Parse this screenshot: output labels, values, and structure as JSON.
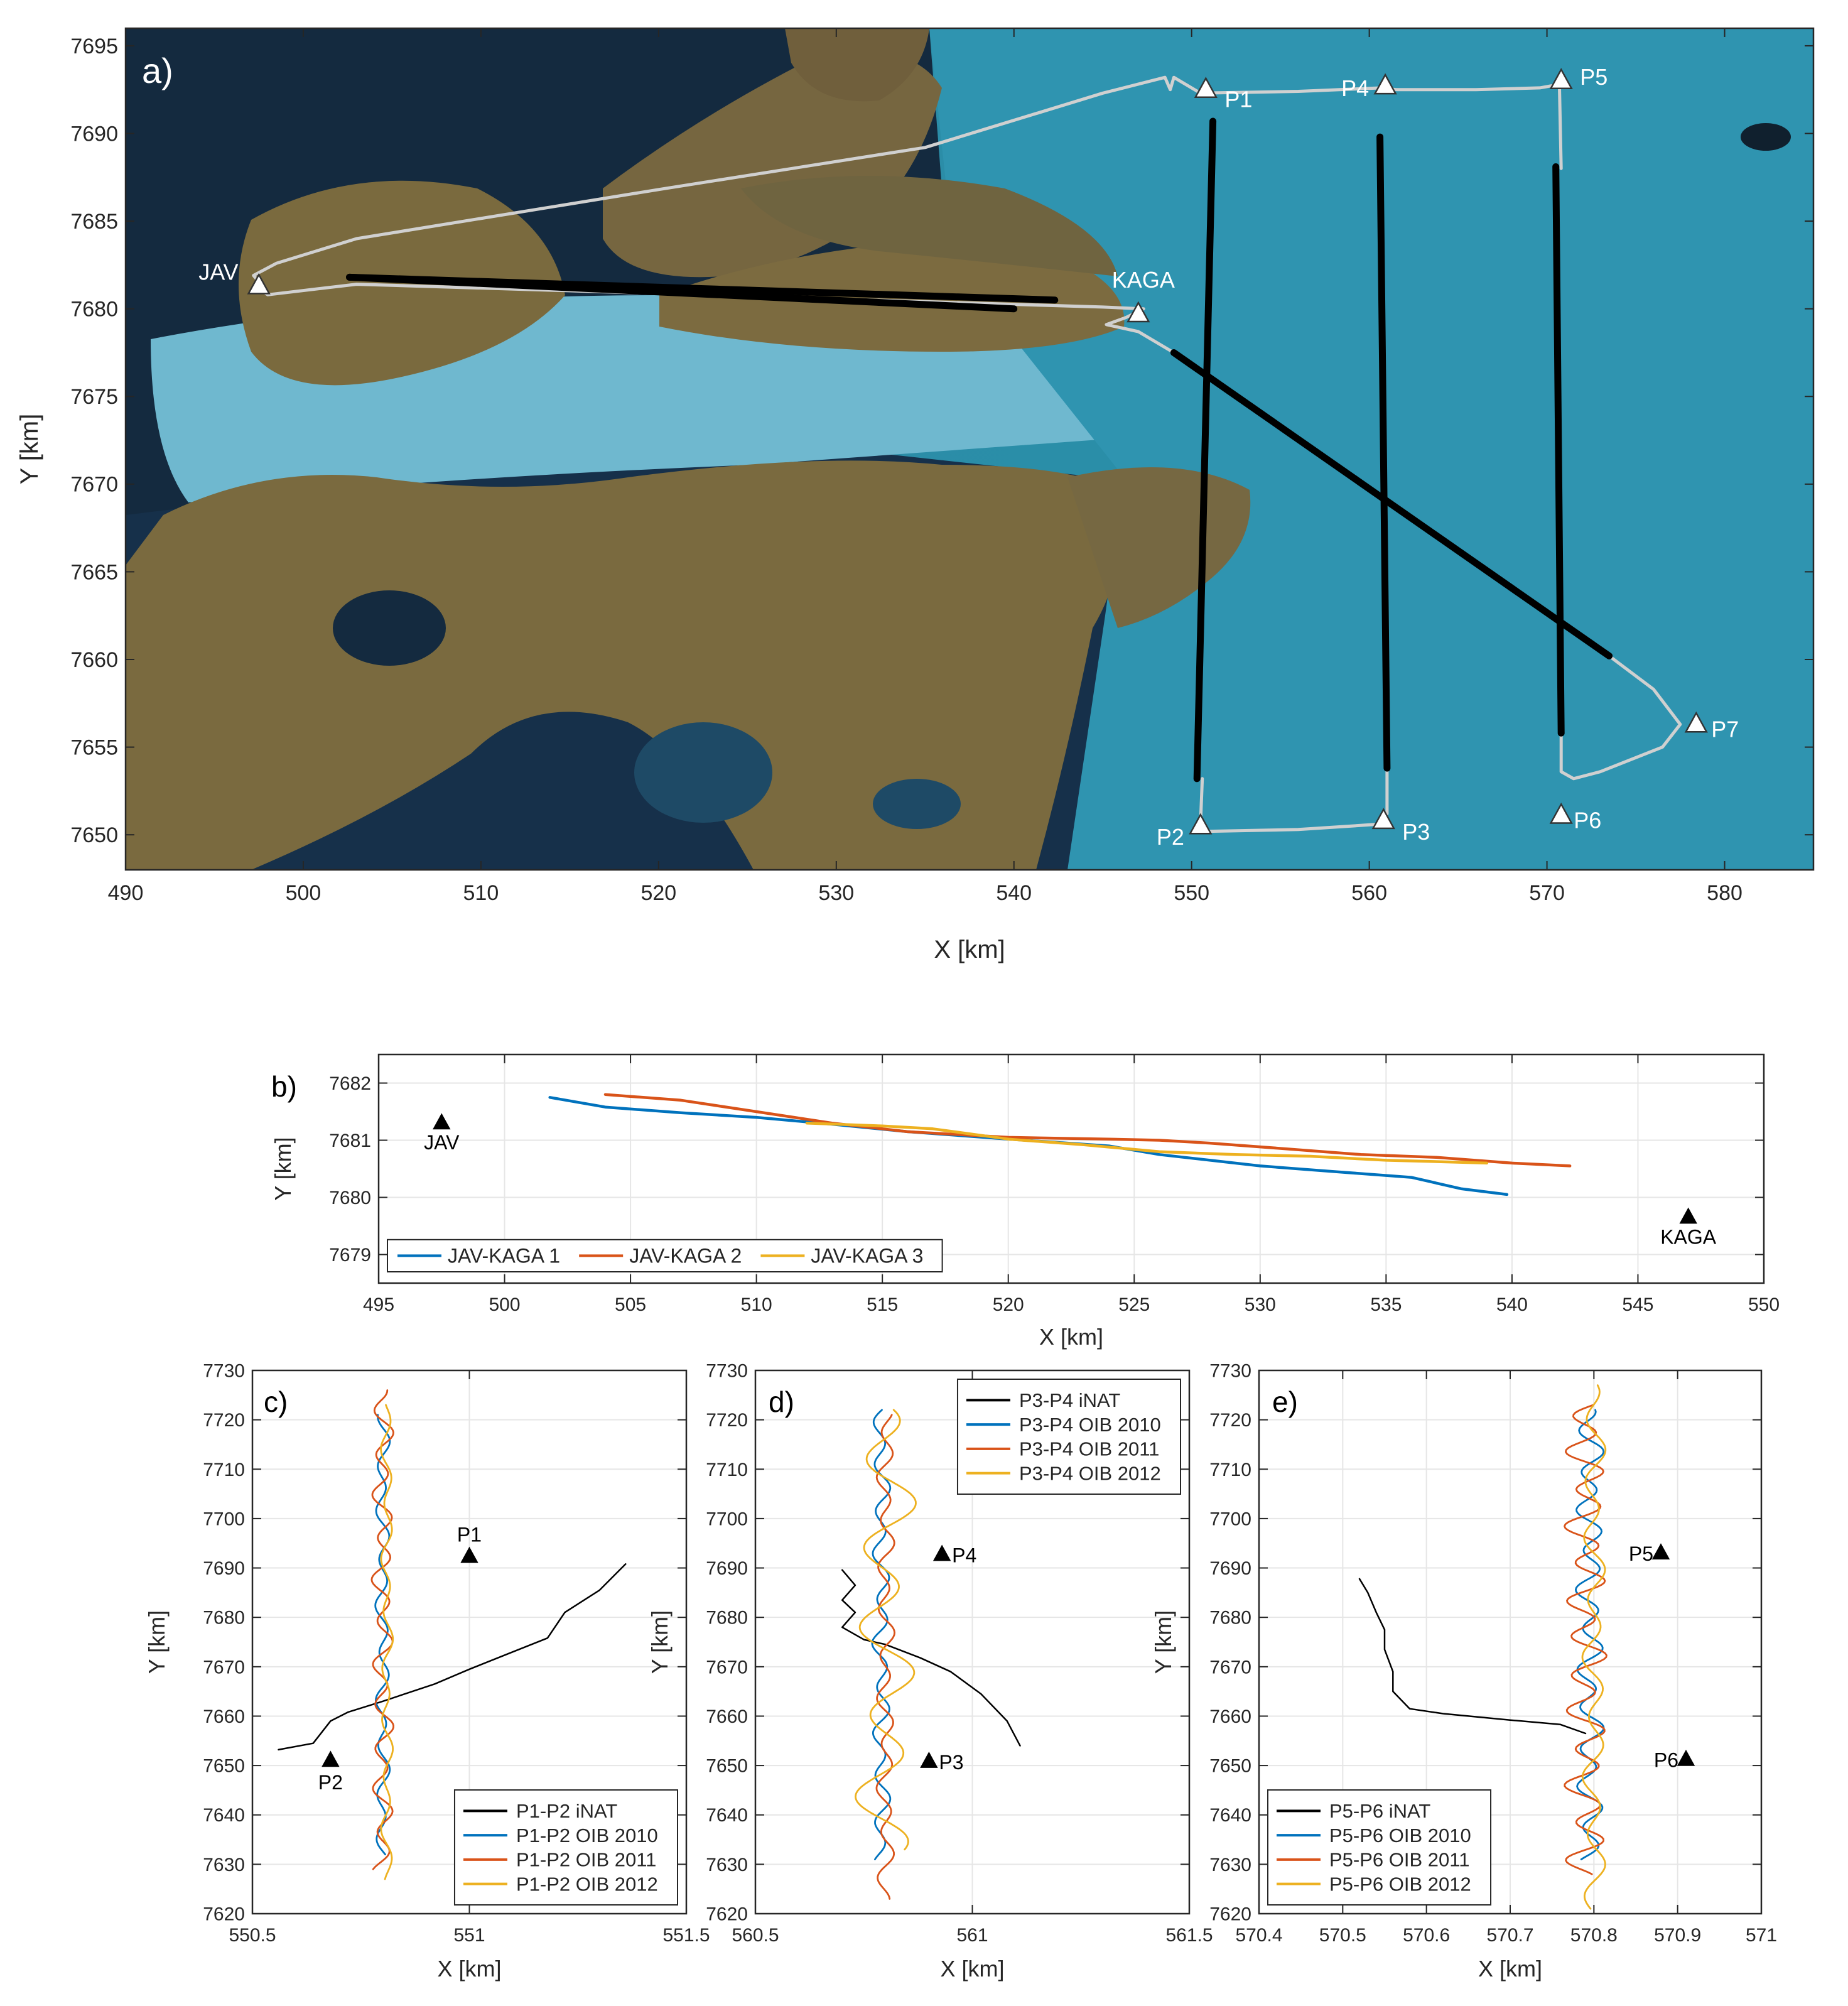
{
  "figure": {
    "panels": [
      {
        "letter": "a)"
      },
      {
        "letter": "b)"
      },
      {
        "letter": "c)"
      },
      {
        "letter": "d)"
      },
      {
        "letter": "e)"
      }
    ]
  },
  "chart_data": [
    {
      "id": "a",
      "type": "line",
      "panel_label": "a)",
      "background": "satellite image",
      "xlabel": "X [km]",
      "ylabel": "Y [km]",
      "xlim": [
        490,
        585
      ],
      "ylim": [
        7648,
        7696
      ],
      "xticks": [
        490,
        500,
        510,
        520,
        530,
        540,
        550,
        560,
        570,
        580
      ],
      "yticks": [
        7650,
        7655,
        7660,
        7665,
        7670,
        7675,
        7680,
        7685,
        7690,
        7695
      ],
      "grid": false,
      "stations": [
        {
          "name": "JAV",
          "x": 497.5,
          "y": 7681.3
        },
        {
          "name": "KAGA",
          "x": 547.0,
          "y": 7679.7
        },
        {
          "name": "P1",
          "x": 550.8,
          "y": 7692.5
        },
        {
          "name": "P2",
          "x": 550.5,
          "y": 7650.5
        },
        {
          "name": "P3",
          "x": 560.8,
          "y": 7650.8
        },
        {
          "name": "P4",
          "x": 560.9,
          "y": 7692.7
        },
        {
          "name": "P5",
          "x": 570.8,
          "y": 7693.0
        },
        {
          "name": "P6",
          "x": 570.8,
          "y": 7651.1
        },
        {
          "name": "P7",
          "x": 578.4,
          "y": 7656.3
        }
      ],
      "flight_path": {
        "color": "#d0d0d0",
        "x": [
          497.8,
          497.2,
          498.5,
          503,
          520,
          535,
          545,
          548.5,
          548.8,
          549,
          550.5,
          556,
          560.7,
          561.5,
          566,
          569.6,
          570.7,
          570.8
        ],
        "y": [
          7681.2,
          7681.9,
          7682.6,
          7684.0,
          7686.8,
          7689.2,
          7692.3,
          7693.2,
          7692.5,
          7693.2,
          7692.3,
          7692.4,
          7692.6,
          7692.5,
          7692.5,
          7692.6,
          7692.8,
          7688.0
        ]
      },
      "flight_path_2": {
        "color": "#d0d0d0",
        "x": [
          497.3,
          498.0,
          503,
          545,
          547.3,
          546.3,
          545.2,
          547.0,
          549.0
        ],
        "y": [
          7681.3,
          7680.8,
          7681.4,
          7680.1,
          7680.0,
          7679.5,
          7679.1,
          7678.7,
          7677.5
        ]
      },
      "return_path": {
        "color": "#d0d0d0",
        "x": [
          550.6,
          550.5,
          551.0,
          556,
          560.5,
          561.0,
          561.0
        ],
        "y": [
          7653.2,
          7650.6,
          7650.2,
          7650.3,
          7650.6,
          7651.2,
          7653.8
        ]
      },
      "east_loop": {
        "color": "#d0d0d0",
        "x": [
          573.5,
          576,
          577.5,
          576.5,
          573,
          571.5,
          570.8,
          570.8
        ],
        "y": [
          7660.2,
          7658.3,
          7656.3,
          7655.0,
          7653.6,
          7653.2,
          7653.6,
          7656.0
        ]
      },
      "segments": [
        {
          "name": "JAV-KAGA",
          "color": "#000000",
          "x": [
            502.6,
            542.3
          ],
          "y": [
            7681.8,
            7680.5
          ]
        },
        {
          "name": "JAV-KAGA",
          "color": "#000000",
          "x": [
            502.6,
            540.0
          ],
          "y": [
            7681.8,
            7680.0
          ]
        },
        {
          "name": "P1-P2",
          "color": "#000000",
          "x": [
            551.2,
            550.3
          ],
          "y": [
            7690.7,
            7653.2
          ]
        },
        {
          "name": "P4-P3",
          "color": "#000000",
          "x": [
            560.6,
            561.0
          ],
          "y": [
            7689.8,
            7653.8
          ]
        },
        {
          "name": "P5-P6",
          "color": "#000000",
          "x": [
            570.5,
            570.8
          ],
          "y": [
            7688.1,
            7655.8
          ]
        },
        {
          "name": "KAGA-diagonal",
          "color": "#000000",
          "x": [
            549.0,
            573.5
          ],
          "y": [
            7677.5,
            7660.2
          ]
        }
      ]
    },
    {
      "id": "b",
      "type": "line",
      "panel_label": "b)",
      "xlabel": "X [km]",
      "ylabel": "Y [km]",
      "xlim": [
        495,
        550
      ],
      "ylim": [
        7678.5,
        7682.5
      ],
      "xticks": [
        495,
        500,
        505,
        510,
        515,
        520,
        525,
        530,
        535,
        540,
        545,
        550
      ],
      "yticks": [
        7679,
        7680,
        7681,
        7682
      ],
      "grid": true,
      "legend": "bottom-left",
      "markers": [
        {
          "name": "JAV",
          "x": 497.5,
          "y": 7681.3
        },
        {
          "name": "KAGA",
          "x": 547.0,
          "y": 7679.65
        }
      ],
      "series": [
        {
          "name": "JAV-KAGA 1",
          "color": "#0072BD",
          "x": [
            501.8,
            504,
            507,
            510,
            513,
            516,
            520,
            524,
            526,
            530,
            533,
            536,
            538,
            539.8
          ],
          "y": [
            7681.75,
            7681.58,
            7681.48,
            7681.4,
            7681.28,
            7681.15,
            7681.02,
            7680.9,
            7680.75,
            7680.55,
            7680.45,
            7680.35,
            7680.15,
            7680.05
          ]
        },
        {
          "name": "JAV-KAGA 2",
          "color": "#D95319",
          "x": [
            504,
            507,
            510,
            513,
            516,
            520,
            524,
            526,
            528,
            531,
            534,
            537,
            540,
            542.3
          ],
          "y": [
            7681.8,
            7681.7,
            7681.5,
            7681.3,
            7681.15,
            7681.05,
            7681.02,
            7681.0,
            7680.95,
            7680.85,
            7680.75,
            7680.7,
            7680.6,
            7680.55
          ]
        },
        {
          "name": "JAV-KAGA 3",
          "color": "#EDB120",
          "x": [
            512,
            515,
            517,
            520,
            523,
            526,
            529,
            532,
            535,
            537.5,
            539
          ],
          "y": [
            7681.3,
            7681.25,
            7681.2,
            7681.02,
            7680.92,
            7680.8,
            7680.75,
            7680.72,
            7680.65,
            7680.62,
            7680.6
          ]
        }
      ]
    },
    {
      "id": "c",
      "type": "line",
      "panel_label": "c)",
      "xlabel": "X [km]",
      "ylabel": "Y [km]",
      "xlim": [
        550.5,
        551.5
      ],
      "ylim": [
        7620,
        7730
      ],
      "xticks": [
        550.5,
        551,
        551.5
      ],
      "yticks": [
        7620,
        7630,
        7640,
        7650,
        7660,
        7670,
        7680,
        7690,
        7700,
        7710,
        7720,
        7730
      ],
      "grid": true,
      "legend": "bottom-right",
      "markers": [
        {
          "name": "P1",
          "x": 551.0,
          "y": 7692.3
        },
        {
          "name": "P2",
          "x": 550.68,
          "y": 7651
        }
      ],
      "series": [
        {
          "name": "P1-P2 iNAT",
          "color": "#000000",
          "x": [
            550.56,
            550.64,
            550.68,
            550.72,
            550.8,
            550.92,
            551.0,
            551.1,
            551.18,
            551.22,
            551.3,
            551.36
          ],
          "y": [
            7653.2,
            7654.5,
            7659.0,
            7660.8,
            7663.0,
            7666.5,
            7669.5,
            7673.0,
            7675.8,
            7681.0,
            7685.5,
            7690.8
          ]
        },
        {
          "name": "P1-P2 OIB 2010",
          "color": "#0072BD",
          "mean_x": 550.8,
          "amplitude": 0.012,
          "period": 9.5,
          "phase": 0.5,
          "ymin": 7632,
          "ymax": 7721
        },
        {
          "name": "P1-P2 OIB 2011",
          "color": "#D95319",
          "mean_x": 550.8,
          "amplitude": 0.018,
          "period": 8.5,
          "phase": 2.0,
          "ymin": 7629,
          "ymax": 7726
        },
        {
          "name": "P1-P2 OIB 2012",
          "color": "#EDB120",
          "mean_x": 550.81,
          "amplitude": 0.01,
          "period": 11,
          "phase": 3.0,
          "ymin": 7627,
          "ymax": 7723
        }
      ]
    },
    {
      "id": "d",
      "type": "line",
      "panel_label": "d)",
      "xlabel": "X [km]",
      "ylabel": "Y [km]",
      "xlim": [
        560.5,
        561.5
      ],
      "ylim": [
        7620,
        7730
      ],
      "xticks": [
        560.5,
        561,
        561.5
      ],
      "yticks": [
        7620,
        7630,
        7640,
        7650,
        7660,
        7670,
        7680,
        7690,
        7700,
        7710,
        7720,
        7730
      ],
      "grid": true,
      "legend": "top-right",
      "markers": [
        {
          "name": "P4",
          "x": 560.93,
          "y": 7692.7
        },
        {
          "name": "P3",
          "x": 560.9,
          "y": 7650.8
        }
      ],
      "series": [
        {
          "name": "P3-P4 iNAT",
          "color": "#000000",
          "x": [
            560.7,
            560.73,
            560.7,
            560.73,
            560.7,
            560.75,
            560.8,
            560.88,
            560.95,
            561.02,
            561.08,
            561.11
          ],
          "y": [
            7689.6,
            7686.5,
            7683.5,
            7681.0,
            7678.0,
            7675.5,
            7674.5,
            7671.8,
            7669.0,
            7664.5,
            7659.0,
            7654.0
          ]
        },
        {
          "name": "P3-P4 OIB 2010",
          "color": "#0072BD",
          "mean_x": 560.79,
          "amplitude": 0.015,
          "period": 9,
          "phase": 0.0,
          "ymin": 7631,
          "ymax": 7722
        },
        {
          "name": "P3-P4 OIB 2011",
          "color": "#D95319",
          "mean_x": 560.8,
          "amplitude": 0.015,
          "period": 9,
          "phase": 1.6,
          "ymin": 7623,
          "ymax": 7721
        },
        {
          "name": "P3-P4 OIB 2012",
          "color": "#EDB120",
          "mean_x": 560.8,
          "amplitude": 0.05,
          "period": 17,
          "phase": 0.8,
          "ymin": 7633,
          "ymax": 7722
        }
      ]
    },
    {
      "id": "e",
      "type": "line",
      "panel_label": "e)",
      "xlabel": "X [km]",
      "ylabel": "Y [km]",
      "xlim": [
        570.4,
        571
      ],
      "ylim": [
        7620,
        7730
      ],
      "xticks": [
        570.4,
        570.5,
        570.6,
        570.7,
        570.8,
        570.9,
        571
      ],
      "yticks": [
        7620,
        7630,
        7640,
        7650,
        7660,
        7670,
        7680,
        7690,
        7700,
        7710,
        7720,
        7730
      ],
      "grid": true,
      "legend": "bottom-left",
      "markers": [
        {
          "name": "P5",
          "x": 570.88,
          "y": 7693.0
        },
        {
          "name": "P6",
          "x": 570.91,
          "y": 7651.2
        }
      ],
      "series": [
        {
          "name": "P5-P6 iNAT",
          "color": "#000000",
          "x": [
            570.52,
            570.53,
            570.54,
            570.55,
            570.55,
            570.56,
            570.56,
            570.58,
            570.62,
            570.7,
            570.76,
            570.79
          ],
          "y": [
            7687.8,
            7685.0,
            7681.0,
            7677.5,
            7673.5,
            7669.0,
            7665.0,
            7661.5,
            7660.5,
            7659.2,
            7658.3,
            7656.5
          ]
        },
        {
          "name": "P5-P6 OIB 2010",
          "color": "#0072BD",
          "mean_x": 570.795,
          "amplitude": 0.012,
          "period": 8,
          "phase": 0.3,
          "ymin": 7631,
          "ymax": 7722
        },
        {
          "name": "P5-P6 OIB 2011",
          "color": "#D95319",
          "mean_x": 570.79,
          "amplitude": 0.018,
          "period": 7.5,
          "phase": 1.8,
          "ymin": 7628,
          "ymax": 7723
        },
        {
          "name": "P5-P6 OIB 2012",
          "color": "#EDB120",
          "mean_x": 570.8,
          "amplitude": 0.01,
          "period": 12,
          "phase": 2.7,
          "ymin": 7621,
          "ymax": 7727
        }
      ]
    }
  ]
}
